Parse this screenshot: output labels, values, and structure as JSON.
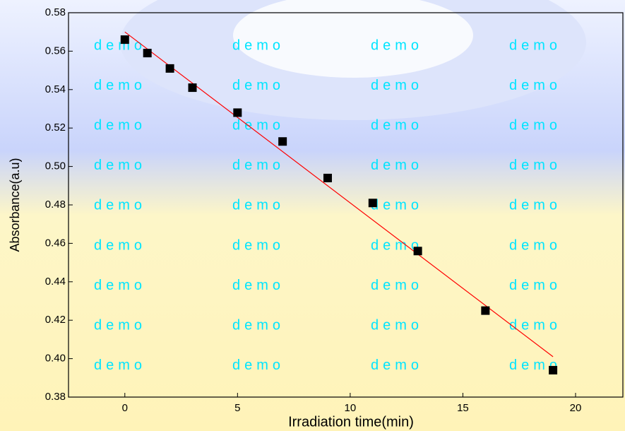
{
  "chart_data": {
    "type": "scatter",
    "xlabel": "Irradiation time(min)",
    "ylabel": "Absorbance(a.u)",
    "watermark": "demo",
    "x": [
      0,
      1,
      2,
      3,
      5,
      7,
      9,
      11,
      13,
      16,
      19
    ],
    "series": [
      {
        "values": [
          0.566,
          0.559,
          0.551,
          0.541,
          0.528,
          0.513,
          0.494,
          0.481,
          0.456,
          0.425,
          0.394
        ],
        "color": "#000000"
      }
    ],
    "fit": {
      "x": [
        0,
        19
      ],
      "values": [
        0.57,
        0.401
      ],
      "color": "#ff0000"
    },
    "xlim": [
      -2.5,
      22.1
    ],
    "xticks": [
      0,
      5,
      10,
      15,
      20
    ],
    "ylim": [
      0.38,
      0.58
    ],
    "yticks": [
      0.38,
      {
        "value": 0.4,
        "label": "0.40"
      },
      0.42,
      0.44,
      0.46,
      0.48,
      {
        "value": 0.5,
        "label": "0.50"
      },
      0.52,
      0.54,
      0.56,
      0.58
    ]
  }
}
